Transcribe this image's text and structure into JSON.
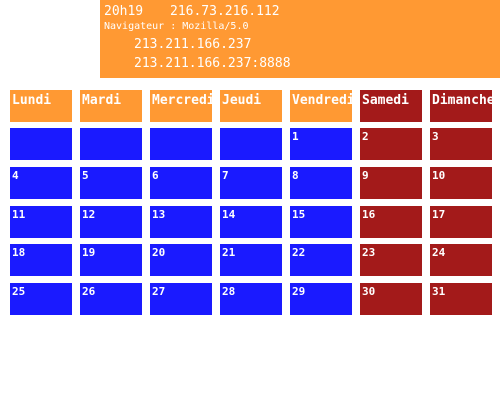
{
  "header": {
    "time": "20h19",
    "ip": "216.73.216.112",
    "browser": "Navigateur : Mozilla/5.0",
    "host1": "213.211.166.237",
    "host2": "213.211.166.237:8888"
  },
  "calendar": {
    "days": [
      "Lundi",
      "Mardi",
      "Mercredi",
      "Jeudi",
      "Vendredi",
      "Samedi",
      "Dimanche"
    ],
    "weeks": [
      [
        null,
        null,
        null,
        null,
        1,
        2,
        3
      ],
      [
        4,
        5,
        6,
        7,
        8,
        9,
        10
      ],
      [
        11,
        12,
        13,
        14,
        15,
        16,
        17
      ],
      [
        18,
        19,
        20,
        21,
        22,
        23,
        24
      ],
      [
        25,
        26,
        27,
        28,
        29,
        30,
        31
      ]
    ]
  }
}
